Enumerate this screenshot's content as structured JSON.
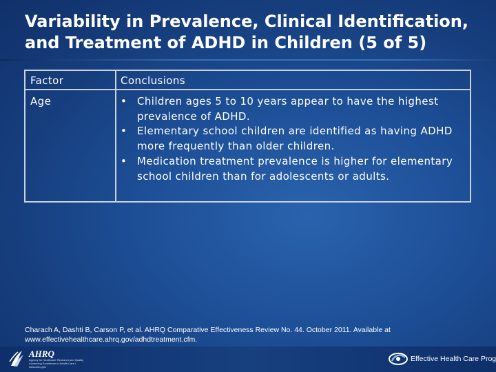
{
  "slide": {
    "title_line1": "Variability in Prevalence, Clinical Identification,",
    "title_line2": "and Treatment of ADHD in Children (5 of 5)"
  },
  "table": {
    "headers": [
      "Factor",
      "Conclusions"
    ],
    "rows": [
      {
        "factor": "Age",
        "conclusions": [
          "Children ages 5 to 10 years appear to have the highest prevalence of ADHD.",
          "Elementary school children are identified as having ADHD more frequently than older children.",
          "Medication treatment prevalence is higher for elementary school children than for adolescents or adults."
        ]
      }
    ],
    "bullet": "•"
  },
  "citation": {
    "line1": "Charach A, Dashti B, Carson P, et al. AHRQ Comparative Effectiveness Review No. 44. October 2011. Available at",
    "line2": "www.effectivehealthcare.ahrq.gov/adhdtreatment.cfm."
  },
  "footer": {
    "left_logo_icon": "hhs-eagle-icon",
    "agency_name": "AHRQ",
    "agency_subtitle": "Agency for Healthcare Research and Quality Advancing Excellence in Health Care • www.ahrq.gov",
    "right_logo_icon": "ehc-swirl-icon",
    "program_name": "Effective Health Care Program"
  },
  "colors": {
    "background": "#1d4f97",
    "table_border": "#c9d2e2",
    "text": "#ffffff"
  }
}
